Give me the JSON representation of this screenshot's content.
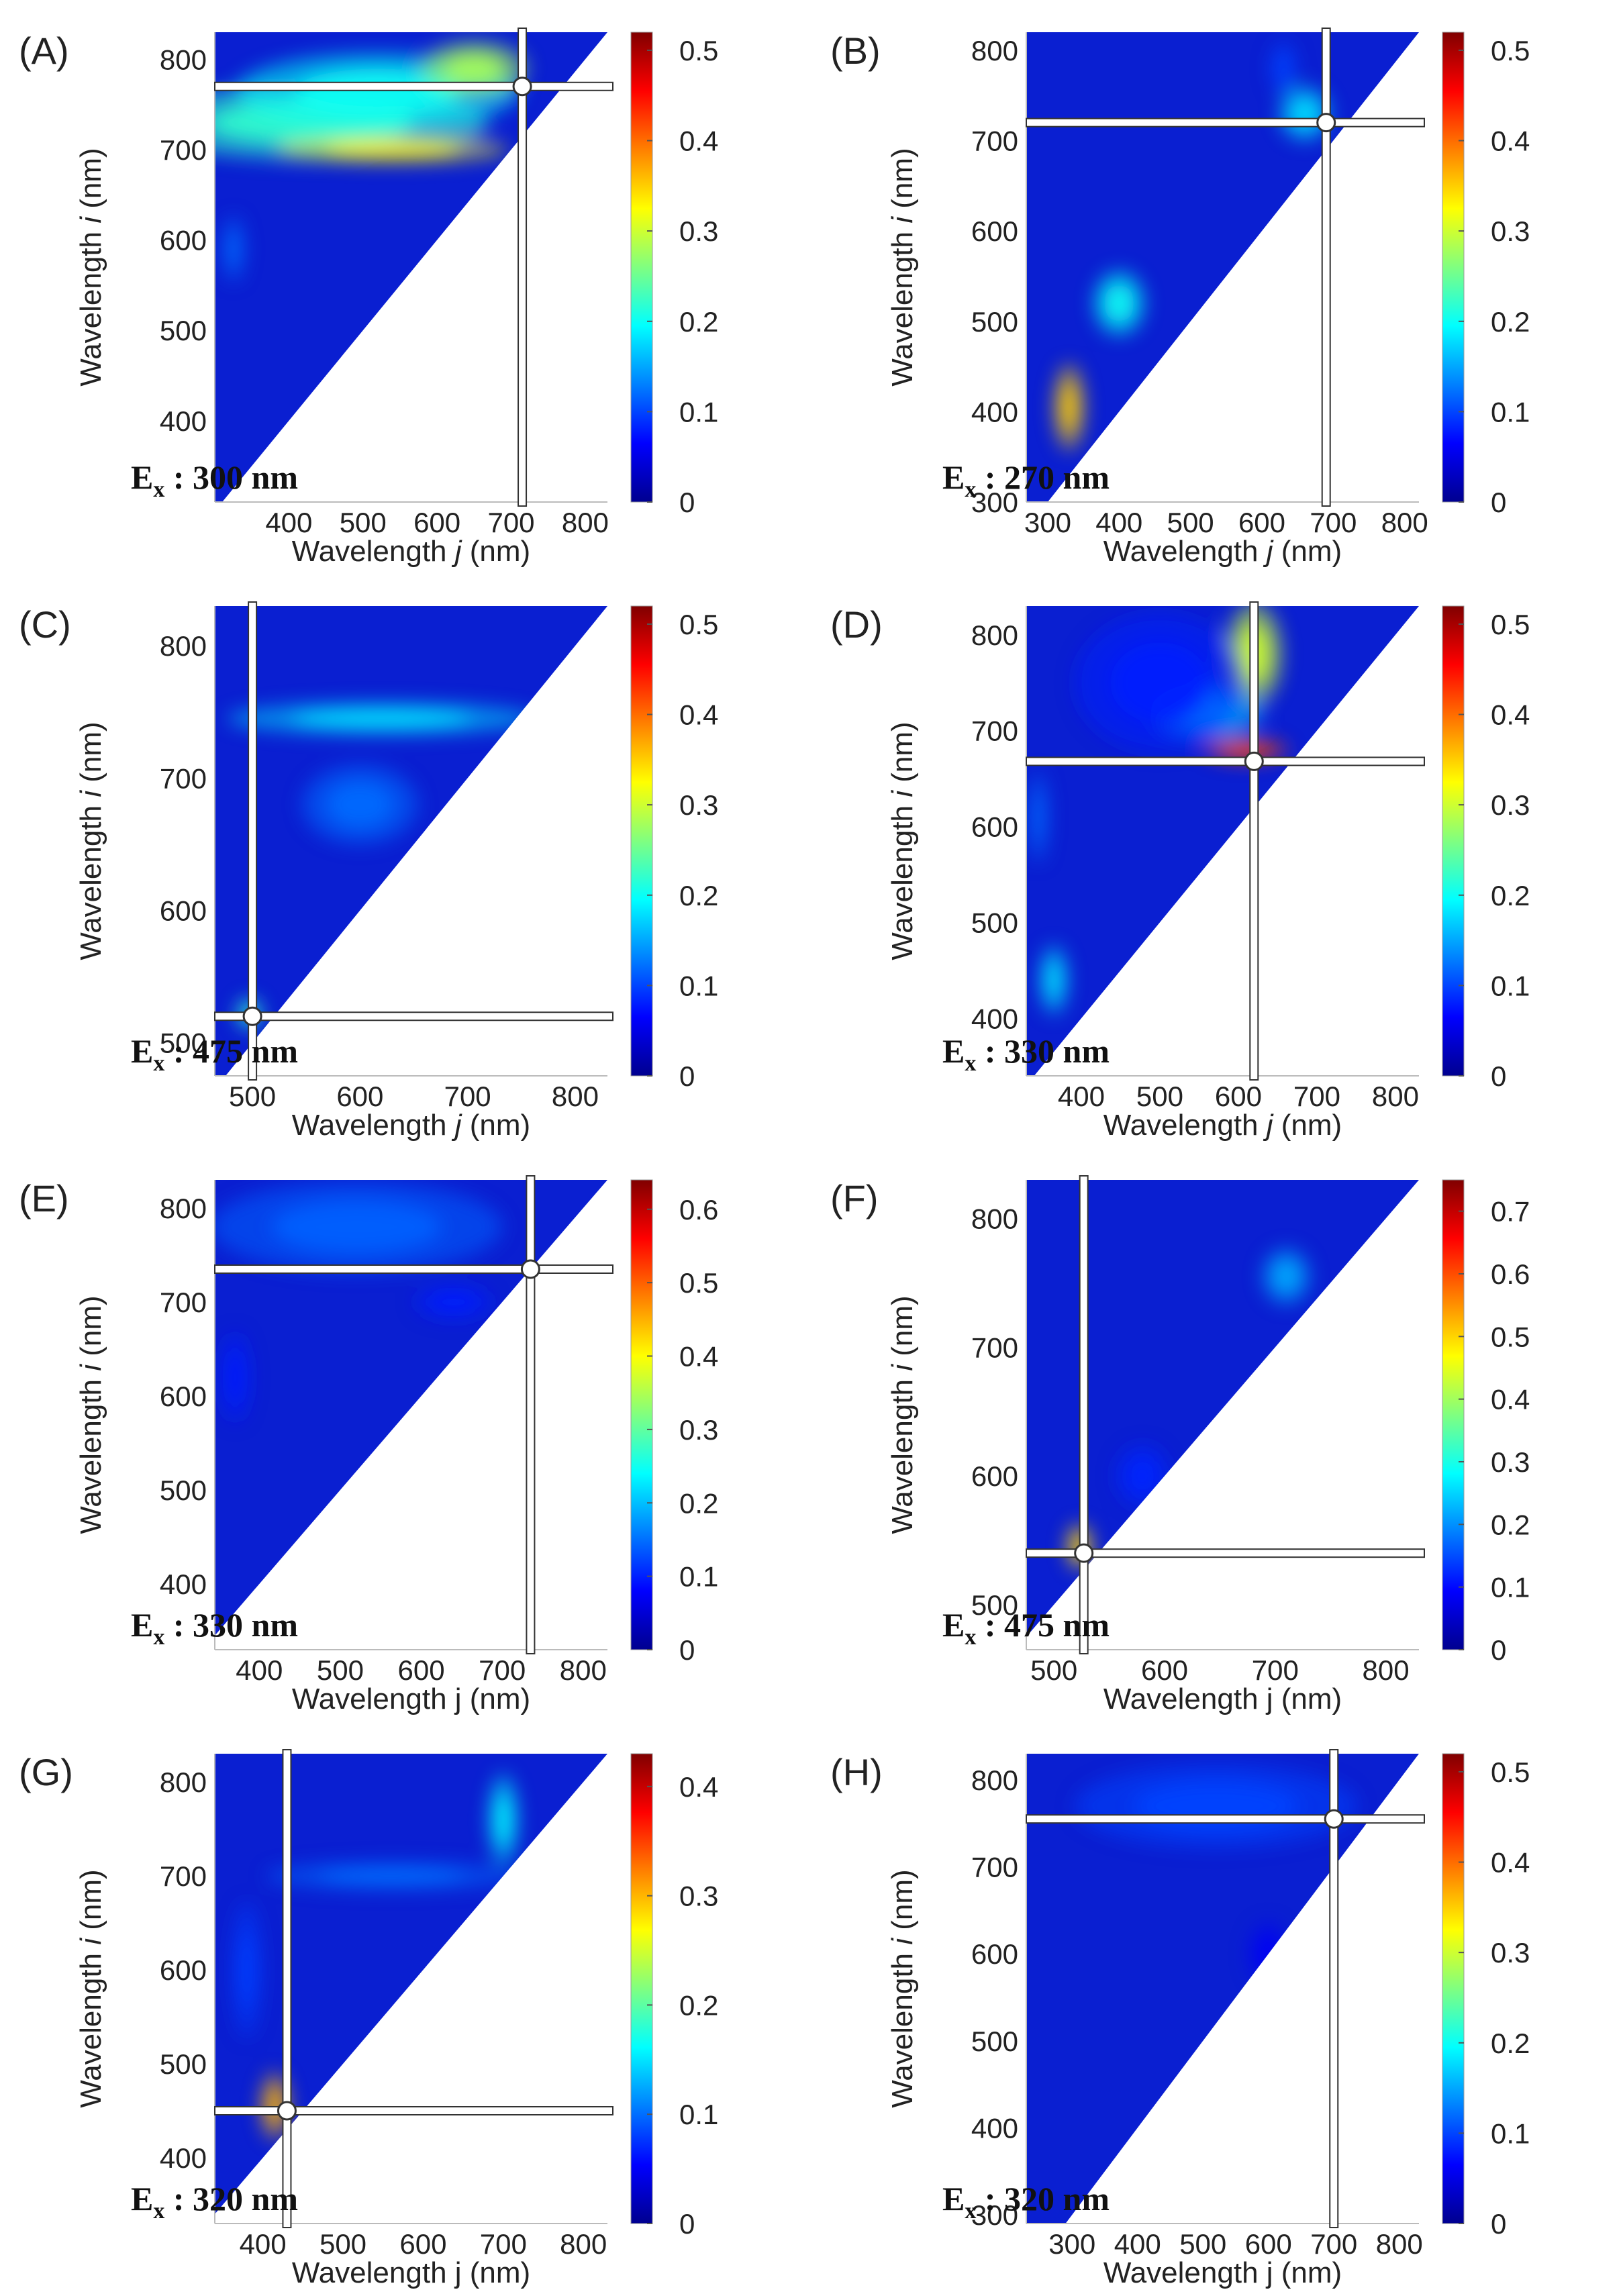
{
  "figure": {
    "description_panels": [
      "A",
      "B",
      "C",
      "D",
      "E",
      "F",
      "G",
      "H"
    ]
  },
  "colors": {
    "colormap": [
      "#00008f",
      "#0000ff",
      "#0080ff",
      "#00ffff",
      "#80ff80",
      "#ffff00",
      "#ff8000",
      "#ff0000",
      "#800000"
    ],
    "background_field": "#0a1fd1",
    "crosshair_fill": "#ffffff",
    "crosshair_stroke": "#333333"
  },
  "chart_data": [
    {
      "panel": "A",
      "type": "heatmap",
      "ex_label": "E",
      "ex_sub": "x",
      "ex_value": " : 300 nm",
      "xlabel_pre": "Wavelength ",
      "xlabel_var": "j",
      "xlabel_post": " (nm)",
      "ylabel_pre": "Wavelength ",
      "ylabel_var": "i",
      "ylabel_post": " (nm)",
      "xlim": [
        300,
        830
      ],
      "ylim": [
        310,
        830
      ],
      "xticks": [
        400,
        500,
        600,
        700,
        800
      ],
      "yticks": [
        400,
        500,
        600,
        700,
        800
      ],
      "clim": [
        0,
        0.52
      ],
      "cticks": [
        0,
        0.1,
        0.2,
        0.3,
        0.4,
        0.5
      ],
      "crosshair": {
        "x": 715,
        "y": 770
      },
      "hotspots": [
        {
          "x": 430,
          "y": 730,
          "sx": 200,
          "sy": 35,
          "v": 0.22
        },
        {
          "x": 540,
          "y": 700,
          "sx": 130,
          "sy": 12,
          "v": 0.33
        },
        {
          "x": 520,
          "y": 765,
          "sx": 160,
          "sy": 35,
          "v": 0.2
        },
        {
          "x": 650,
          "y": 790,
          "sx": 60,
          "sy": 25,
          "v": 0.28
        },
        {
          "x": 325,
          "y": 590,
          "sx": 12,
          "sy": 30,
          "v": 0.12
        }
      ]
    },
    {
      "panel": "B",
      "type": "heatmap",
      "ex_label": "E",
      "ex_sub": "x",
      "ex_value": " : 270 nm",
      "xlabel_pre": "Wavelength ",
      "xlabel_var": "j",
      "xlabel_post": " (nm)",
      "ylabel_pre": "Wavelength ",
      "ylabel_var": "i",
      "ylabel_post": " (nm)",
      "xlim": [
        270,
        820
      ],
      "ylim": [
        300,
        820
      ],
      "xticks": [
        300,
        400,
        500,
        600,
        700,
        800
      ],
      "yticks": [
        300,
        400,
        500,
        600,
        700,
        800
      ],
      "clim": [
        0,
        0.52
      ],
      "cticks": [
        0,
        0.1,
        0.2,
        0.3,
        0.4,
        0.5
      ],
      "crosshair": {
        "x": 690,
        "y": 720
      },
      "hotspots": [
        {
          "x": 330,
          "y": 405,
          "sx": 18,
          "sy": 40,
          "v": 0.35
        },
        {
          "x": 400,
          "y": 520,
          "sx": 30,
          "sy": 30,
          "v": 0.2
        },
        {
          "x": 660,
          "y": 730,
          "sx": 30,
          "sy": 25,
          "v": 0.18
        },
        {
          "x": 630,
          "y": 780,
          "sx": 15,
          "sy": 25,
          "v": 0.1
        }
      ]
    },
    {
      "panel": "C",
      "type": "heatmap",
      "ex_label": "E",
      "ex_sub": "x",
      "ex_value": " : 475 nm",
      "xlabel_pre": "Wavelength ",
      "xlabel_var": "j",
      "xlabel_post": " (nm)",
      "ylabel_pre": "Wavelength ",
      "ylabel_var": "i",
      "ylabel_post": " (nm)",
      "xlim": [
        465,
        830
      ],
      "ylim": [
        475,
        830
      ],
      "xticks": [
        500,
        600,
        700,
        800
      ],
      "yticks": [
        500,
        600,
        700,
        800
      ],
      "clim": [
        0,
        0.52
      ],
      "cticks": [
        0,
        0.1,
        0.2,
        0.3,
        0.4,
        0.5
      ],
      "crosshair": {
        "x": 500,
        "y": 520
      },
      "hotspots": [
        {
          "x": 620,
          "y": 745,
          "sx": 120,
          "sy": 10,
          "v": 0.18
        },
        {
          "x": 600,
          "y": 680,
          "sx": 45,
          "sy": 25,
          "v": 0.12
        },
        {
          "x": 497,
          "y": 522,
          "sx": 10,
          "sy": 10,
          "v": 0.22
        }
      ]
    },
    {
      "panel": "D",
      "type": "heatmap",
      "ex_label": "E",
      "ex_sub": "x",
      "ex_value": " : 330 nm",
      "xlabel_pre": "Wavelength ",
      "xlabel_var": "j",
      "xlabel_post": " (nm)",
      "ylabel_pre": "Wavelength ",
      "ylabel_var": "i",
      "ylabel_post": " (nm)",
      "xlim": [
        330,
        830
      ],
      "ylim": [
        340,
        830
      ],
      "xticks": [
        400,
        500,
        600,
        700,
        800
      ],
      "yticks": [
        400,
        500,
        600,
        700,
        800
      ],
      "clim": [
        0,
        0.52
      ],
      "cticks": [
        0,
        0.1,
        0.2,
        0.3,
        0.4,
        0.5
      ],
      "crosshair": {
        "x": 620,
        "y": 668
      },
      "hotspots": [
        {
          "x": 610,
          "y": 680,
          "sx": 45,
          "sy": 10,
          "v": 0.42
        },
        {
          "x": 620,
          "y": 780,
          "sx": 30,
          "sy": 45,
          "v": 0.3
        },
        {
          "x": 560,
          "y": 720,
          "sx": 60,
          "sy": 25,
          "v": 0.16
        },
        {
          "x": 365,
          "y": 440,
          "sx": 15,
          "sy": 30,
          "v": 0.18
        },
        {
          "x": 345,
          "y": 610,
          "sx": 10,
          "sy": 40,
          "v": 0.12
        },
        {
          "x": 500,
          "y": 750,
          "sx": 90,
          "sy": 60,
          "v": 0.08
        }
      ]
    },
    {
      "panel": "E",
      "type": "heatmap",
      "ex_label": "E",
      "ex_sub": "x",
      "ex_value": " : 330 nm",
      "xlabel_pre": "Wavelength j (nm)",
      "xlabel_var": "",
      "xlabel_post": "",
      "ylabel_pre": "Wavelength ",
      "ylabel_var": "i",
      "ylabel_post": " (nm)",
      "xlim": [
        345,
        830
      ],
      "ylim": [
        330,
        830
      ],
      "xticks": [
        400,
        500,
        600,
        700,
        800
      ],
      "yticks": [
        400,
        500,
        600,
        700,
        800
      ],
      "clim": [
        0,
        0.64
      ],
      "cticks": [
        0,
        0.1,
        0.2,
        0.3,
        0.4,
        0.5,
        0.6
      ],
      "crosshair": {
        "x": 735,
        "y": 735
      },
      "hotspots": [
        {
          "x": 520,
          "y": 780,
          "sx": 150,
          "sy": 40,
          "v": 0.14
        },
        {
          "x": 640,
          "y": 700,
          "sx": 40,
          "sy": 15,
          "v": 0.1
        },
        {
          "x": 370,
          "y": 620,
          "sx": 15,
          "sy": 40,
          "v": 0.1
        }
      ]
    },
    {
      "panel": "F",
      "type": "heatmap",
      "ex_label": "E",
      "ex_sub": "x",
      "ex_value": " : 475 nm",
      "xlabel_pre": "Wavelength j (nm)",
      "xlabel_var": "",
      "xlabel_post": "",
      "ylabel_pre": "Wavelength ",
      "ylabel_var": "i",
      "ylabel_post": " (nm)",
      "xlim": [
        475,
        830
      ],
      "ylim": [
        465,
        830
      ],
      "xticks": [
        500,
        600,
        700,
        800
      ],
      "yticks": [
        500,
        600,
        700,
        800
      ],
      "clim": [
        0,
        0.75
      ],
      "cticks": [
        0,
        0.1,
        0.2,
        0.3,
        0.4,
        0.5,
        0.6,
        0.7
      ],
      "crosshair": {
        "x": 527,
        "y": 540
      },
      "hotspots": [
        {
          "x": 523,
          "y": 545,
          "sx": 10,
          "sy": 15,
          "v": 0.5
        },
        {
          "x": 710,
          "y": 755,
          "sx": 18,
          "sy": 18,
          "v": 0.22
        },
        {
          "x": 580,
          "y": 600,
          "sx": 20,
          "sy": 20,
          "v": 0.12
        }
      ]
    },
    {
      "panel": "G",
      "type": "heatmap",
      "ex_label": "E",
      "ex_sub": "x",
      "ex_value": " : 320 nm",
      "xlabel_pre": "Wavelength j (nm)",
      "xlabel_var": "",
      "xlabel_post": "",
      "ylabel_pre": "Wavelength ",
      "ylabel_var": "i",
      "ylabel_post": " (nm)",
      "xlim": [
        340,
        830
      ],
      "ylim": [
        330,
        830
      ],
      "xticks": [
        400,
        500,
        600,
        700,
        800
      ],
      "yticks": [
        400,
        500,
        600,
        700,
        800
      ],
      "clim": [
        0,
        0.43
      ],
      "cticks": [
        0,
        0.1,
        0.2,
        0.3,
        0.4
      ],
      "crosshair": {
        "x": 430,
        "y": 450
      },
      "hotspots": [
        {
          "x": 415,
          "y": 455,
          "sx": 15,
          "sy": 30,
          "v": 0.3
        },
        {
          "x": 700,
          "y": 760,
          "sx": 15,
          "sy": 40,
          "v": 0.16
        },
        {
          "x": 560,
          "y": 700,
          "sx": 130,
          "sy": 12,
          "v": 0.1
        },
        {
          "x": 380,
          "y": 600,
          "sx": 15,
          "sy": 60,
          "v": 0.08
        }
      ]
    },
    {
      "panel": "H",
      "type": "heatmap",
      "ex_label": "E",
      "ex_sub": "x",
      "ex_value": " : 320 nm",
      "xlabel_pre": "Wavelength j (nm)",
      "xlabel_var": "",
      "xlabel_post": "",
      "ylabel_pre": "Wavelength ",
      "ylabel_var": "i",
      "ylabel_post": " (nm)",
      "xlim": [
        230,
        830
      ],
      "ylim": [
        290,
        830
      ],
      "xticks": [
        300,
        400,
        500,
        600,
        700,
        800
      ],
      "yticks": [
        300,
        400,
        500,
        600,
        700,
        800
      ],
      "clim": [
        0,
        0.52
      ],
      "cticks": [
        0,
        0.1,
        0.2,
        0.3,
        0.4,
        0.5
      ],
      "crosshair": {
        "x": 700,
        "y": 755
      },
      "hotspots": [
        {
          "x": 520,
          "y": 770,
          "sx": 180,
          "sy": 40,
          "v": 0.1
        },
        {
          "x": 600,
          "y": 600,
          "sx": 25,
          "sy": 30,
          "v": 0.06
        }
      ]
    }
  ]
}
